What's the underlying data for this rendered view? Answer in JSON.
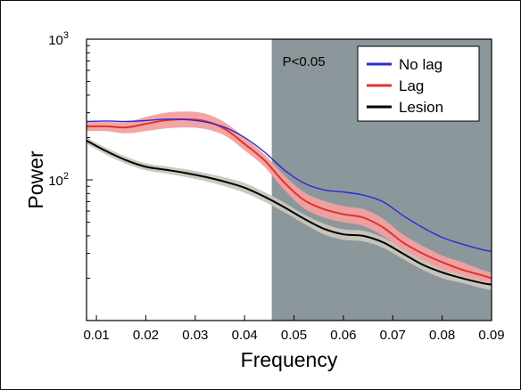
{
  "chart_data": {
    "type": "line",
    "xlabel": "Frequency",
    "ylabel": "Power",
    "xlim": [
      0.008,
      0.09
    ],
    "ylim": [
      10,
      1000
    ],
    "y_scale": "log",
    "x_ticks": [
      "0.01",
      "0.02",
      "0.03",
      "0.04",
      "0.05",
      "0.06",
      "0.07",
      "0.08",
      "0.09"
    ],
    "x_tick_values": [
      0.01,
      0.02,
      0.03,
      0.04,
      0.05,
      0.06,
      0.07,
      0.08,
      0.09
    ],
    "y_ticks": [
      {
        "value": 100,
        "base": "10",
        "exp": "2"
      },
      {
        "value": 1000,
        "base": "10",
        "exp": "3"
      }
    ],
    "shaded_region": {
      "x_from": 0.0455,
      "x_to": 0.09,
      "label": "P<0.05",
      "color": "#8c979b"
    },
    "legend_position": "top-right",
    "series": [
      {
        "name": "No lag",
        "color": "#2a2ad6",
        "band": false,
        "x": [
          0.008,
          0.012,
          0.016,
          0.02,
          0.024,
          0.028,
          0.032,
          0.036,
          0.04,
          0.044,
          0.048,
          0.052,
          0.056,
          0.06,
          0.064,
          0.068,
          0.072,
          0.076,
          0.08,
          0.084,
          0.088,
          0.09
        ],
        "y": [
          260,
          262,
          260,
          264,
          270,
          268,
          258,
          236,
          200,
          158,
          118,
          95,
          85,
          82,
          78,
          70,
          56,
          46,
          39,
          35,
          32,
          31
        ]
      },
      {
        "name": "Lag",
        "color": "#e0332f",
        "band": true,
        "band_color": "#f2a0a0",
        "x": [
          0.008,
          0.012,
          0.016,
          0.02,
          0.024,
          0.028,
          0.032,
          0.036,
          0.04,
          0.044,
          0.048,
          0.052,
          0.056,
          0.06,
          0.064,
          0.068,
          0.072,
          0.076,
          0.08,
          0.084,
          0.088,
          0.09
        ],
        "y": [
          240,
          240,
          236,
          250,
          265,
          270,
          262,
          230,
          180,
          138,
          96,
          72,
          62,
          57,
          54,
          46,
          36,
          30,
          26,
          23,
          21,
          20
        ],
        "lower": [
          222,
          222,
          214,
          222,
          232,
          236,
          230,
          206,
          162,
          124,
          85,
          63,
          54,
          50,
          47,
          40,
          32,
          27,
          23,
          21,
          19,
          18
        ],
        "upper": [
          258,
          258,
          258,
          280,
          300,
          306,
          296,
          256,
          200,
          152,
          108,
          82,
          71,
          65,
          62,
          53,
          41,
          34,
          29,
          26,
          23,
          22
        ]
      },
      {
        "name": "Lesion",
        "color": "#000000",
        "band": true,
        "band_color": "#c9c6bd",
        "x": [
          0.008,
          0.012,
          0.016,
          0.02,
          0.024,
          0.028,
          0.032,
          0.036,
          0.04,
          0.044,
          0.048,
          0.052,
          0.056,
          0.06,
          0.064,
          0.068,
          0.072,
          0.076,
          0.08,
          0.084,
          0.088,
          0.09
        ],
        "y": [
          190,
          160,
          138,
          124,
          118,
          112,
          105,
          97,
          88,
          76,
          64,
          53,
          45,
          41,
          40,
          36,
          30,
          25,
          22,
          20,
          18.5,
          18
        ],
        "lower": [
          180,
          151,
          130,
          117,
          111,
          105,
          98,
          90,
          81,
          70,
          59,
          49,
          41,
          37.5,
          36.5,
          33,
          27.5,
          23,
          20,
          18.5,
          17,
          16.5
        ],
        "upper": [
          200,
          169,
          146,
          131,
          125,
          119,
          112,
          104,
          95,
          82,
          69,
          57,
          49,
          44.5,
          43.5,
          39,
          32.5,
          27,
          24,
          21.5,
          20,
          19.5
        ]
      }
    ]
  }
}
